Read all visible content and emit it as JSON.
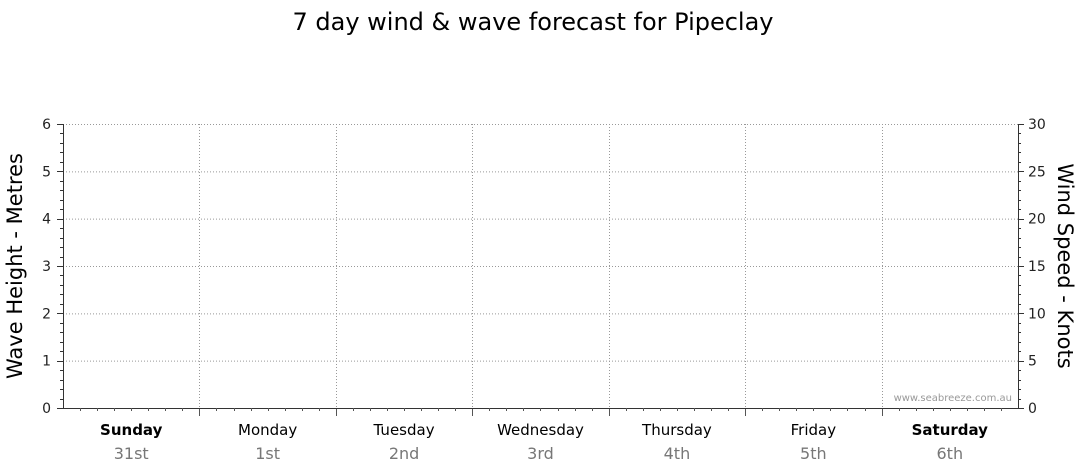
{
  "chart_data": {
    "type": "line",
    "title": "7 day wind & wave forecast for Pipeclay",
    "ylabel_left": "Wave Height - Metres",
    "ylabel_right": "Wind Speed - Knots",
    "ylim_left": [
      0,
      6
    ],
    "ylim_right": [
      0,
      30
    ],
    "yticks_left": [
      0,
      1,
      2,
      3,
      4,
      5,
      6
    ],
    "yticks_right": [
      0,
      5,
      10,
      15,
      20,
      25,
      30
    ],
    "grid": true,
    "days": [
      {
        "day": "Sunday",
        "date": "31st",
        "bold": true
      },
      {
        "day": "Monday",
        "date": "1st",
        "bold": false
      },
      {
        "day": "Tuesday",
        "date": "2nd",
        "bold": false
      },
      {
        "day": "Wednesday",
        "date": "3rd",
        "bold": false
      },
      {
        "day": "Thursday",
        "date": "4th",
        "bold": false
      },
      {
        "day": "Friday",
        "date": "5th",
        "bold": false
      },
      {
        "day": "Saturday",
        "date": "6th",
        "bold": true
      }
    ],
    "series": []
  },
  "watermark": "www.seabreeze.com.au"
}
